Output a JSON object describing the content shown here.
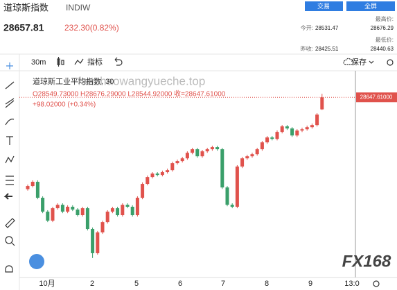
{
  "header": {
    "title": "道琼斯指数",
    "code": "INDIW",
    "buttons": [
      "交易",
      "全屏"
    ],
    "price": "28657.81",
    "change": "232.30(0.82%)",
    "stats": [
      {
        "label": "今开:",
        "value": "28531.47"
      },
      {
        "label": "最高价:",
        "value": "28676.29"
      },
      {
        "label": "昨收:",
        "value": "28425.51"
      },
      {
        "label": "最低价:",
        "value": "28440.63"
      }
    ]
  },
  "toolbar": {
    "interval": "30m",
    "indicators": "指标",
    "save": "保存"
  },
  "logo": "FX168",
  "chart_data": {
    "type": "candlestick",
    "title": "道琼斯工业平均指数, 30",
    "ohlc": "O28549.73000  H28676.29000  L28544.92000  收=28647.61000",
    "change": "+98.02000 (+0.34%)",
    "watermark": "fanzhaowangyueche.top",
    "x_labels": [
      "10月",
      "2",
      "5",
      "6",
      "7",
      "8",
      "9",
      "13:0"
    ],
    "ylim": [
      27181,
      28875
    ],
    "last_price": {
      "value": 28647.61,
      "label": "28647.61000"
    },
    "up_color": "#e0524c",
    "down_color": "#3a9f6a",
    "series": {
      "open": [
        27900,
        27926,
        27960,
        27830,
        27717,
        27644,
        27745,
        27773,
        27717,
        27757,
        27734,
        27689,
        27745,
        27576,
        27379,
        27548,
        27632,
        27717,
        27745,
        27689,
        27773,
        27757,
        27689,
        27830,
        27943,
        27999,
        28027,
        28016,
        28039,
        28055,
        28112,
        28129,
        28151,
        28196,
        28225,
        28168,
        28208,
        28225,
        28242,
        28225,
        27914,
        27773,
        27757,
        28084,
        28151,
        28168,
        28185,
        28225,
        28281,
        28321,
        28309,
        28366,
        28411,
        28394,
        28337,
        28377,
        28388,
        28405,
        28422,
        28549.73
      ],
      "high": [
        27938,
        27972,
        27972,
        27842,
        27729,
        27757,
        27785,
        27785,
        27769,
        27769,
        27746,
        27757,
        27757,
        27588,
        27560,
        27644,
        27729,
        27757,
        27757,
        27785,
        27785,
        27769,
        27842,
        27955,
        28011,
        28039,
        28039,
        28051,
        28067,
        28124,
        28141,
        28163,
        28208,
        28237,
        28237,
        28220,
        28237,
        28254,
        28254,
        28237,
        27926,
        27785,
        28096,
        28163,
        28180,
        28197,
        28237,
        28293,
        28333,
        28333,
        28378,
        28423,
        28423,
        28406,
        28389,
        28400,
        28417,
        28434,
        28519,
        28676.29
      ],
      "low": [
        27888,
        27914,
        27818,
        27705,
        27632,
        27632,
        27733,
        27705,
        27705,
        27722,
        27677,
        27677,
        27564,
        27340,
        27367,
        27536,
        27620,
        27705,
        27677,
        27677,
        27745,
        27677,
        27677,
        27818,
        27931,
        27987,
        28004,
        28004,
        28027,
        28043,
        28100,
        28117,
        28139,
        28184,
        28156,
        28156,
        28196,
        28213,
        28213,
        27902,
        27761,
        27745,
        27745,
        28072,
        28139,
        28156,
        28173,
        28213,
        28269,
        28297,
        28297,
        28354,
        28382,
        28325,
        28325,
        28365,
        28376,
        28393,
        28410,
        28544.92
      ],
      "close": [
        27926,
        27960,
        27830,
        27717,
        27644,
        27745,
        27773,
        27717,
        27757,
        27734,
        27689,
        27745,
        27576,
        27379,
        27548,
        27632,
        27717,
        27745,
        27689,
        27773,
        27757,
        27689,
        27830,
        27943,
        27999,
        28027,
        28016,
        28039,
        28055,
        28112,
        28129,
        28151,
        28196,
        28225,
        28168,
        28208,
        28225,
        28242,
        28225,
        27914,
        27773,
        27757,
        28084,
        28151,
        28168,
        28185,
        28225,
        28281,
        28321,
        28309,
        28366,
        28411,
        28394,
        28337,
        28377,
        28388,
        28405,
        28422,
        28507,
        28647.61
      ]
    }
  }
}
